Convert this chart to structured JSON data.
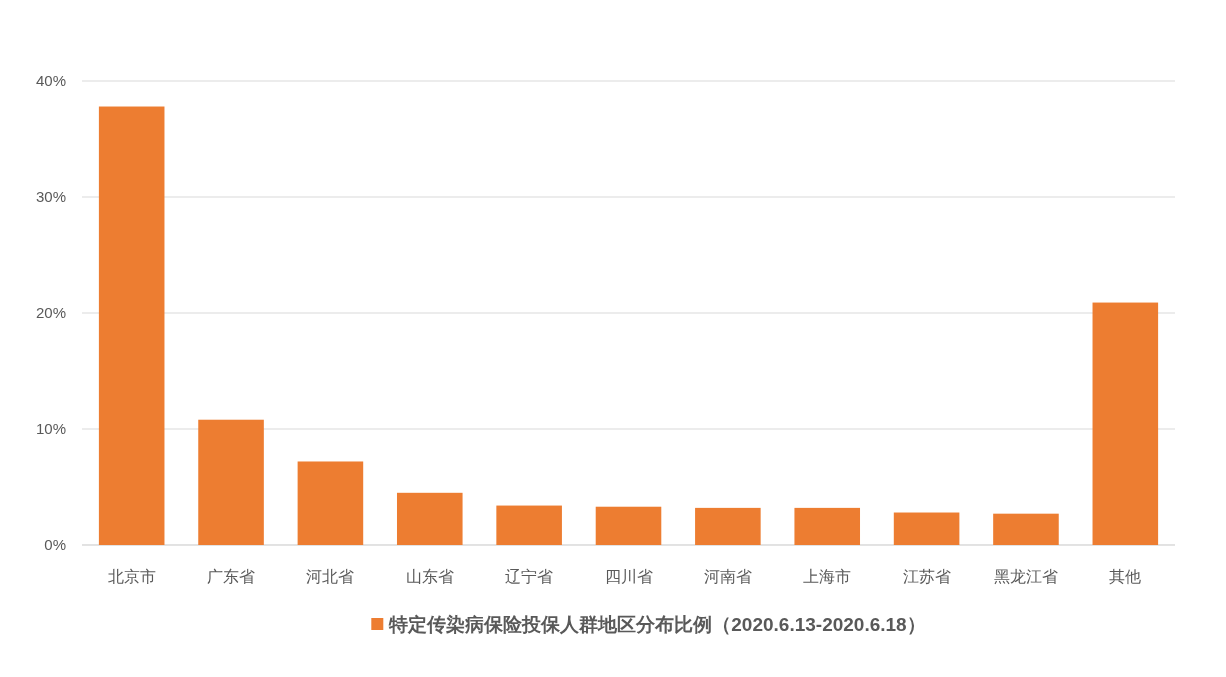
{
  "chart_data": {
    "type": "bar",
    "categories": [
      "北京市",
      "广东省",
      "河北省",
      "山东省",
      "辽宁省",
      "四川省",
      "河南省",
      "上海市",
      "江苏省",
      "黑龙江省",
      "其他"
    ],
    "series": [
      {
        "name": "特定传染病保险投保人群地区分布比例（2020.6.13-2020.6.18）",
        "color": "#ed7d31",
        "values": [
          37.8,
          10.8,
          7.2,
          4.5,
          3.4,
          3.3,
          3.2,
          3.2,
          2.8,
          2.7,
          20.9
        ]
      }
    ],
    "ylim": [
      0,
      40
    ],
    "yticks": [
      {
        "value": 0,
        "label": "0%"
      },
      {
        "value": 10,
        "label": "10%"
      },
      {
        "value": 20,
        "label": "20%"
      },
      {
        "value": 30,
        "label": "30%"
      },
      {
        "value": 40,
        "label": "40%"
      }
    ],
    "grid": "y",
    "legend": "bottom"
  }
}
